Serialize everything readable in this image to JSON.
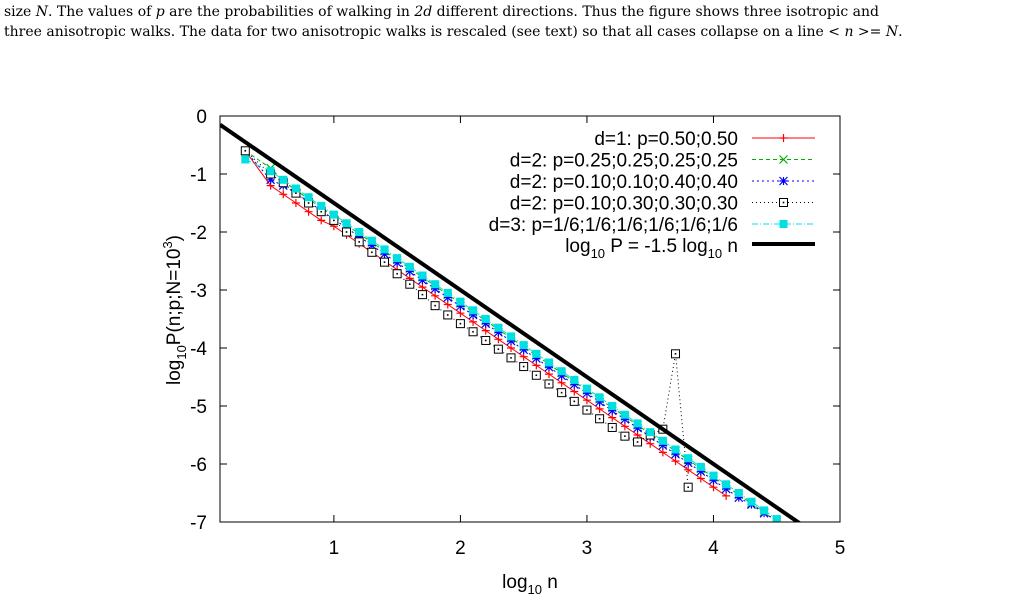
{
  "caption": {
    "line1_a": "size ",
    "line1_N": "N",
    "line1_b": ". The values of ",
    "line1_p": "p",
    "line1_c": " are the probabilities of walking in ",
    "line1_2d": "2d",
    "line1_d": " different directions. Thus the figure shows three isotropic and",
    "line2_a": "three anisotropic walks. The data for two anisotropic walks is rescaled (see text) so that all cases collapse on a line ",
    "line2_eq": "< n >= N",
    "line2_end": "."
  },
  "chart_data": {
    "type": "line",
    "xlim": [
      0.1,
      5
    ],
    "ylim": [
      -7,
      0
    ],
    "xticks": [
      "1",
      "2",
      "3",
      "4",
      "5"
    ],
    "yticks": [
      "0",
      "-1",
      "-2",
      "-3",
      "-4",
      "-5",
      "-6",
      "-7"
    ],
    "xlabel": {
      "base": "log",
      "sub": "10",
      "rest": " n"
    },
    "ylabel": {
      "base": "log",
      "sub": "10",
      "mid": "P(n;p;N=10",
      "sup": "3",
      "end": ")"
    },
    "legend_position": "top-right",
    "series": [
      {
        "name": "d=1: p=0.50;0.50",
        "color": "#ff0000",
        "marker": "plus",
        "dash": "",
        "x": [
          0.3,
          0.5,
          0.6,
          0.7,
          0.8,
          0.9,
          1.0,
          1.1,
          1.2,
          1.3,
          1.4,
          1.5,
          1.6,
          1.7,
          1.8,
          1.9,
          2.0,
          2.1,
          2.2,
          2.3,
          2.4,
          2.5,
          2.6,
          2.7,
          2.8,
          2.9,
          3.0,
          3.1,
          3.2,
          3.3,
          3.4,
          3.5,
          3.6,
          3.7,
          3.8,
          3.9,
          4.0,
          4.1
        ],
        "y": [
          -0.6,
          -1.2,
          -1.35,
          -1.5,
          -1.65,
          -1.8,
          -1.9,
          -2.05,
          -2.2,
          -2.35,
          -2.5,
          -2.65,
          -2.8,
          -2.95,
          -3.1,
          -3.25,
          -3.4,
          -3.55,
          -3.7,
          -3.85,
          -4.0,
          -4.15,
          -4.3,
          -4.45,
          -4.6,
          -4.75,
          -4.9,
          -5.05,
          -5.2,
          -5.35,
          -5.5,
          -5.65,
          -5.8,
          -5.95,
          -6.1,
          -6.25,
          -6.4,
          -6.55
        ]
      },
      {
        "name": "d=2: p=0.25;0.25;0.25;0.25",
        "color": "#00b000",
        "marker": "x",
        "dash": "4,3",
        "x": [
          0.3,
          0.5,
          0.6,
          0.7,
          0.8,
          0.9,
          1.0,
          1.1,
          1.2,
          1.3,
          1.4,
          1.5,
          1.6,
          1.7,
          1.8,
          1.9,
          2.0,
          2.1,
          2.2,
          2.3,
          2.4,
          2.5,
          2.6,
          2.7,
          2.8,
          2.9,
          3.0,
          3.1,
          3.2,
          3.3,
          3.4,
          3.5,
          3.6,
          3.7,
          3.8,
          3.9,
          4.0,
          4.1,
          4.2,
          4.3,
          4.4,
          4.5
        ],
        "y": [
          -0.6,
          -0.9,
          -1.12,
          -1.28,
          -1.43,
          -1.58,
          -1.73,
          -1.88,
          -2.03,
          -2.18,
          -2.33,
          -2.48,
          -2.63,
          -2.78,
          -2.93,
          -3.08,
          -3.23,
          -3.38,
          -3.53,
          -3.68,
          -3.83,
          -3.98,
          -4.13,
          -4.28,
          -4.43,
          -4.58,
          -4.73,
          -4.88,
          -5.03,
          -5.18,
          -5.33,
          -5.48,
          -5.63,
          -5.78,
          -5.93,
          -6.08,
          -6.23,
          -6.38,
          -6.53,
          -6.68,
          -6.83,
          -7.0
        ]
      },
      {
        "name": "d=2: p=0.10;0.10;0.40;0.40",
        "color": "#0000ff",
        "marker": "star",
        "dash": "2,3",
        "x": [
          0.3,
          0.5,
          0.6,
          0.7,
          0.8,
          0.9,
          1.0,
          1.1,
          1.2,
          1.3,
          1.4,
          1.5,
          1.6,
          1.7,
          1.8,
          1.9,
          2.0,
          2.1,
          2.2,
          2.3,
          2.4,
          2.5,
          2.6,
          2.7,
          2.8,
          2.9,
          3.0,
          3.1,
          3.2,
          3.3,
          3.4,
          3.5,
          3.6,
          3.7,
          3.8,
          3.9,
          4.0,
          4.1,
          4.2,
          4.3,
          4.4,
          4.5
        ],
        "y": [
          -0.6,
          -1.1,
          -1.2,
          -1.33,
          -1.48,
          -1.63,
          -1.78,
          -1.93,
          -2.08,
          -2.23,
          -2.38,
          -2.53,
          -2.68,
          -2.83,
          -2.98,
          -3.13,
          -3.28,
          -3.43,
          -3.58,
          -3.73,
          -3.88,
          -4.03,
          -4.18,
          -4.33,
          -4.48,
          -4.63,
          -4.78,
          -4.93,
          -5.08,
          -5.23,
          -5.38,
          -5.53,
          -5.68,
          -5.83,
          -5.98,
          -6.13,
          -6.28,
          -6.43,
          -6.58,
          -6.7,
          -6.85,
          -6.97
        ]
      },
      {
        "name": "d=2: p=0.10;0.30;0.30;0.30",
        "color": "#000000",
        "marker": "dotbox",
        "dash": "1,3",
        "x": [
          0.3,
          0.5,
          0.6,
          0.7,
          0.8,
          0.9,
          1.0,
          1.1,
          1.2,
          1.3,
          1.4,
          1.5,
          1.6,
          1.7,
          1.8,
          1.9,
          2.0,
          2.1,
          2.2,
          2.3,
          2.4,
          2.5,
          2.6,
          2.7,
          2.8,
          2.9,
          3.0,
          3.1,
          3.2,
          3.3,
          3.4,
          3.5,
          3.6,
          3.7,
          3.8
        ],
        "y": [
          -0.6,
          -1.0,
          -1.15,
          -1.33,
          -1.5,
          -1.65,
          -1.8,
          -2.0,
          -2.17,
          -2.35,
          -2.52,
          -2.72,
          -2.9,
          -3.08,
          -3.27,
          -3.43,
          -3.58,
          -3.72,
          -3.87,
          -4.02,
          -4.17,
          -4.32,
          -4.47,
          -4.62,
          -4.77,
          -4.92,
          -5.07,
          -5.22,
          -5.37,
          -5.52,
          -5.62,
          -5.5,
          -5.4,
          -4.1,
          -6.4
        ]
      },
      {
        "name": "d=3: p=1/6;1/6;1/6;1/6;1/6;1/6",
        "color": "#00e0e0",
        "marker": "filledbox",
        "dash": "6,2,1,2",
        "x": [
          0.3,
          0.5,
          0.6,
          0.7,
          0.8,
          0.9,
          1.0,
          1.1,
          1.2,
          1.3,
          1.4,
          1.5,
          1.6,
          1.7,
          1.8,
          1.9,
          2.0,
          2.1,
          2.2,
          2.3,
          2.4,
          2.5,
          2.6,
          2.7,
          2.8,
          2.9,
          3.0,
          3.1,
          3.2,
          3.3,
          3.4,
          3.5,
          3.6,
          3.7,
          3.8,
          3.9,
          4.0,
          4.1,
          4.2,
          4.3,
          4.4,
          4.5
        ],
        "y": [
          -0.75,
          -0.95,
          -1.1,
          -1.25,
          -1.4,
          -1.55,
          -1.7,
          -1.85,
          -2.0,
          -2.15,
          -2.3,
          -2.45,
          -2.6,
          -2.75,
          -2.9,
          -3.05,
          -3.2,
          -3.35,
          -3.5,
          -3.65,
          -3.8,
          -3.95,
          -4.1,
          -4.25,
          -4.4,
          -4.55,
          -4.7,
          -4.85,
          -5.0,
          -5.15,
          -5.3,
          -5.45,
          -5.6,
          -5.75,
          -5.9,
          -6.05,
          -6.2,
          -6.35,
          -6.5,
          -6.65,
          -6.8,
          -6.95
        ]
      }
    ],
    "reference_line": {
      "label": {
        "a": "log",
        "sub1": "10",
        "b": " P = -1.5 log",
        "sub2": "10",
        "c": " n"
      },
      "slope": -1.5,
      "intercept": 0,
      "color": "#000000"
    }
  }
}
